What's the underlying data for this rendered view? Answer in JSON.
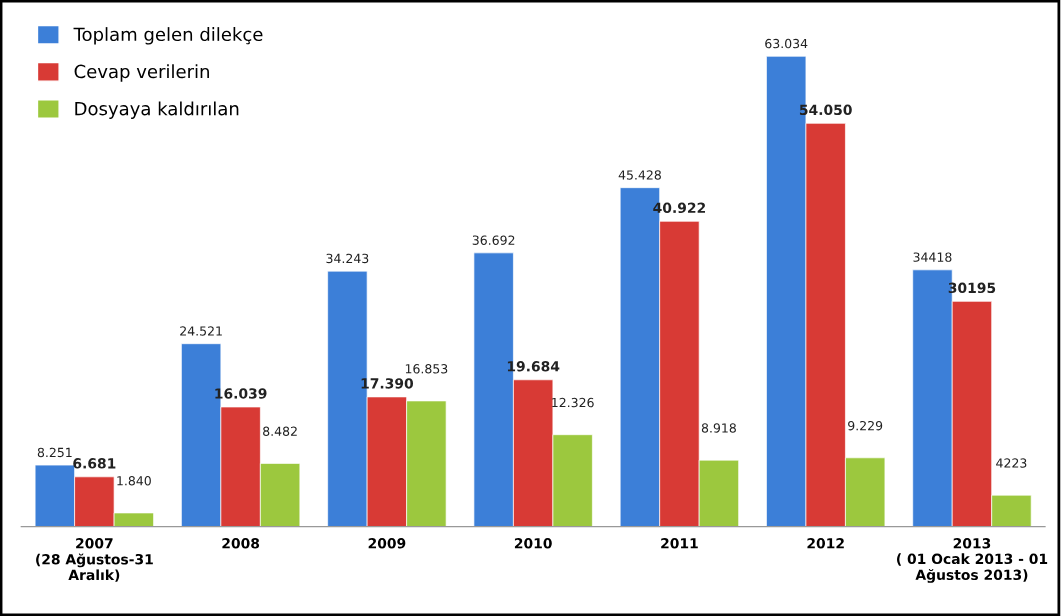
{
  "chart_data": {
    "type": "bar",
    "categories": [
      "2007\n(28 Ağustos-31\nAralık)",
      "2008",
      "2009",
      "2010",
      "2011",
      "2012",
      "2013\n( 01 Ocak 2013 - 01\nAğustos 2013)"
    ],
    "series": [
      {
        "name": "Toplam gelen dilekçe",
        "color": "#3c7fd8",
        "values": [
          8251,
          24521,
          34243,
          36692,
          45428,
          63034,
          34418
        ],
        "value_labels": [
          "8.251",
          "24.521",
          "34.243",
          "36.692",
          "45.428",
          "63.034",
          "34418"
        ]
      },
      {
        "name": "Cevap verilerin",
        "color": "#d83a35",
        "values": [
          6681,
          16039,
          17390,
          19684,
          40922,
          54050,
          30195
        ],
        "value_labels": [
          "6.681",
          "16.039",
          "17.390",
          "19.684",
          "40.922",
          "54.050",
          "30195"
        ]
      },
      {
        "name": "Dosyaya kaldırılan",
        "color": "#9cc83e",
        "values": [
          1840,
          8482,
          16853,
          12326,
          8918,
          9229,
          4223
        ],
        "value_labels": [
          "1.840",
          "8.482",
          "16.853",
          "12.326",
          "8.918",
          "9.229",
          "4223"
        ]
      }
    ],
    "legend": "top left",
    "grid": false
  }
}
